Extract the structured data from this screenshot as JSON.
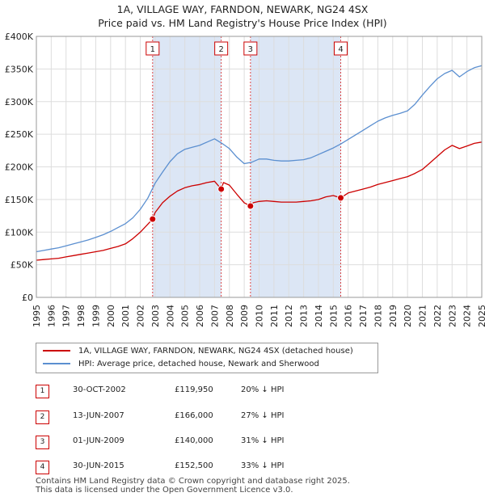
{
  "title": {
    "line1": "1A, VILLAGE WAY, FARNDON, NEWARK, NG24 4SX",
    "line2": "Price paid vs. HM Land Registry's House Price Index (HPI)"
  },
  "colors": {
    "price": "#cc0000",
    "hpi": "#5b8fd0",
    "shade": "#dce6f5",
    "grid": "#dddddd"
  },
  "chart_data": {
    "type": "line",
    "title": "Price paid vs. HM Land Registry's House Price Index (HPI)",
    "xlabel": "",
    "ylabel": "",
    "xlim": [
      1995,
      2025
    ],
    "ylim": [
      0,
      400000
    ],
    "y_ticks": [
      0,
      50000,
      100000,
      150000,
      200000,
      250000,
      300000,
      350000,
      400000
    ],
    "y_tick_labels": [
      "£0",
      "£50K",
      "£100K",
      "£150K",
      "£200K",
      "£250K",
      "£300K",
      "£350K",
      "£400K"
    ],
    "x_ticks": [
      1995,
      1996,
      1997,
      1998,
      1999,
      2000,
      2001,
      2002,
      2003,
      2004,
      2005,
      2006,
      2007,
      2008,
      2009,
      2010,
      2011,
      2012,
      2013,
      2014,
      2015,
      2016,
      2017,
      2018,
      2019,
      2020,
      2021,
      2022,
      2023,
      2024,
      2025
    ],
    "x_tick_labels": [
      "1995",
      "1996",
      "1997",
      "1998",
      "1999",
      "2000",
      "2001",
      "2002",
      "2003",
      "2004",
      "2005",
      "2006",
      "2007",
      "2008",
      "2009",
      "2010",
      "2011",
      "2012",
      "2013",
      "2014",
      "2015",
      "2016",
      "2017",
      "2018",
      "2019",
      "2020",
      "2021",
      "2022",
      "2023",
      "2024",
      "2025"
    ],
    "grid": true,
    "series": [
      {
        "name": "1A, VILLAGE WAY, FARNDON, NEWARK, NG24 4SX (detached house)",
        "color": "#cc0000",
        "x": [
          1995.0,
          1995.5,
          1996.0,
          1996.5,
          1997.0,
          1997.5,
          1998.0,
          1998.5,
          1999.0,
          1999.5,
          2000.0,
          2000.5,
          2001.0,
          2001.5,
          2002.0,
          2002.5,
          2002.83,
          2003.0,
          2003.5,
          2004.0,
          2004.5,
          2005.0,
          2005.5,
          2006.0,
          2006.5,
          2007.0,
          2007.45,
          2007.6,
          2008.0,
          2008.5,
          2009.0,
          2009.42,
          2009.6,
          2010.0,
          2010.5,
          2011.0,
          2011.5,
          2012.0,
          2012.5,
          2013.0,
          2013.5,
          2014.0,
          2014.5,
          2015.0,
          2015.5,
          2016.0,
          2016.5,
          2017.0,
          2017.5,
          2018.0,
          2018.5,
          2019.0,
          2019.5,
          2020.0,
          2020.5,
          2021.0,
          2021.5,
          2022.0,
          2022.5,
          2023.0,
          2023.5,
          2024.0,
          2024.5,
          2025.0
        ],
        "y": [
          57000,
          58000,
          59000,
          60000,
          62000,
          64000,
          66000,
          68000,
          70000,
          72000,
          75000,
          78000,
          82000,
          90000,
          100000,
          112000,
          119950,
          130000,
          145000,
          155000,
          163000,
          168000,
          171000,
          173000,
          176000,
          178000,
          166000,
          176000,
          172000,
          158000,
          145000,
          140000,
          145000,
          147000,
          148000,
          147000,
          146000,
          146000,
          146000,
          147000,
          148000,
          150000,
          154000,
          156000,
          152500,
          160000,
          163000,
          166000,
          169000,
          173000,
          176000,
          179000,
          182000,
          185000,
          190000,
          196000,
          206000,
          216000,
          226000,
          233000,
          228000,
          232000,
          236000,
          238000
        ]
      },
      {
        "name": "HPI: Average price, detached house, Newark and Sherwood",
        "color": "#5b8fd0",
        "x": [
          1995.0,
          1995.5,
          1996.0,
          1996.5,
          1997.0,
          1997.5,
          1998.0,
          1998.5,
          1999.0,
          1999.5,
          2000.0,
          2000.5,
          2001.0,
          2001.5,
          2002.0,
          2002.5,
          2003.0,
          2003.5,
          2004.0,
          2004.5,
          2005.0,
          2005.5,
          2006.0,
          2006.5,
          2007.0,
          2007.5,
          2008.0,
          2008.5,
          2009.0,
          2009.5,
          2010.0,
          2010.5,
          2011.0,
          2011.5,
          2012.0,
          2012.5,
          2013.0,
          2013.5,
          2014.0,
          2014.5,
          2015.0,
          2015.5,
          2016.0,
          2016.5,
          2017.0,
          2017.5,
          2018.0,
          2018.5,
          2019.0,
          2019.5,
          2020.0,
          2020.5,
          2021.0,
          2021.5,
          2022.0,
          2022.5,
          2023.0,
          2023.5,
          2024.0,
          2024.5,
          2025.0
        ],
        "y": [
          70000,
          72000,
          74000,
          76000,
          79000,
          82000,
          85000,
          88000,
          92000,
          96000,
          101000,
          107000,
          113000,
          122000,
          135000,
          152000,
          175000,
          192000,
          208000,
          220000,
          227000,
          230000,
          233000,
          238000,
          243000,
          236000,
          228000,
          215000,
          205000,
          207000,
          212000,
          212000,
          210000,
          209000,
          209000,
          210000,
          211000,
          214000,
          219000,
          224000,
          229000,
          235000,
          242000,
          249000,
          256000,
          263000,
          270000,
          275000,
          279000,
          282000,
          286000,
          296000,
          310000,
          323000,
          335000,
          343000,
          348000,
          338000,
          346000,
          352000,
          355000
        ]
      }
    ],
    "sale_points": [
      {
        "label": "1",
        "x": 2002.83,
        "y": 119950
      },
      {
        "label": "2",
        "x": 2007.45,
        "y": 166000
      },
      {
        "label": "3",
        "x": 2009.42,
        "y": 140000
      },
      {
        "label": "4",
        "x": 2015.5,
        "y": 152500
      }
    ],
    "shaded_spans": [
      [
        2002.83,
        2007.45
      ],
      [
        2009.42,
        2015.5
      ]
    ]
  },
  "legend": {
    "price_label": "1A, VILLAGE WAY, FARNDON, NEWARK, NG24 4SX (detached house)",
    "hpi_label": "HPI: Average price, detached house, Newark and Sherwood"
  },
  "sales": [
    {
      "num": "1",
      "date": "30-OCT-2002",
      "price": "£119,950",
      "hpi": "20% ↓ HPI"
    },
    {
      "num": "2",
      "date": "13-JUN-2007",
      "price": "£166,000",
      "hpi": "27% ↓ HPI"
    },
    {
      "num": "3",
      "date": "01-JUN-2009",
      "price": "£140,000",
      "hpi": "31% ↓ HPI"
    },
    {
      "num": "4",
      "date": "30-JUN-2015",
      "price": "£152,500",
      "hpi": "33% ↓ HPI"
    }
  ],
  "footer": {
    "line1": "Contains HM Land Registry data © Crown copyright and database right 2025.",
    "line2": "This data is licensed under the Open Government Licence v3.0."
  }
}
